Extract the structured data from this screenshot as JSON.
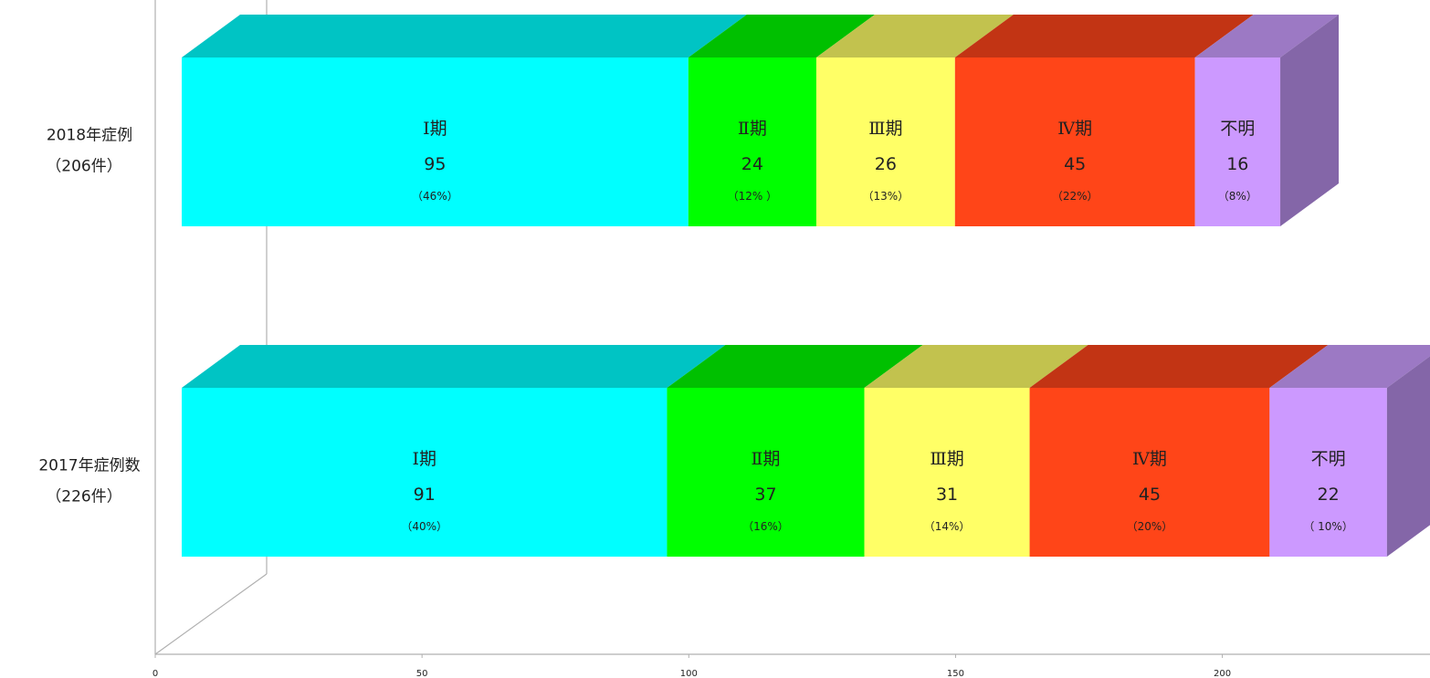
{
  "chart_data": {
    "type": "bar",
    "orientation": "horizontal",
    "stacked": true,
    "three_d": true,
    "title": "",
    "xlabel": "",
    "ylabel": "",
    "xlim": [
      0,
      236
    ],
    "xticks": [
      0,
      50,
      100,
      150,
      200
    ],
    "grid": false,
    "categories": [
      {
        "line1": "2018年症例",
        "line2": "（206件）"
      },
      {
        "line1": "2017年症例数",
        "line2": "（226件）"
      }
    ],
    "series": [
      {
        "name": "Ⅰ期",
        "color": "#00ffff",
        "top_color": "#00c4c4",
        "side_color": "#00a8a8",
        "values": [
          95,
          91
        ],
        "labels": [
          "（46%）",
          "（40%）"
        ]
      },
      {
        "name": "Ⅱ期",
        "color": "#00ff00",
        "top_color": "#00c000",
        "side_color": "#00a000",
        "values": [
          24,
          37
        ],
        "labels": [
          "（12% ）",
          "（16%）"
        ]
      },
      {
        "name": "Ⅲ期",
        "color": "#ffff66",
        "top_color": "#c2c24e",
        "side_color": "#a8a840",
        "values": [
          26,
          31
        ],
        "labels": [
          "（13%）",
          "（14%）"
        ]
      },
      {
        "name": "Ⅳ期",
        "color": "#ff4518",
        "top_color": "#c23414",
        "side_color": "#a82c10",
        "values": [
          45,
          45
        ],
        "labels": [
          "（22%）",
          "（20%）"
        ]
      },
      {
        "name": "不明",
        "color": "#cc99ff",
        "top_color": "#9c79c4",
        "side_color": "#8466a8",
        "values": [
          16,
          22
        ],
        "labels": [
          "（8%）",
          "（ 10%）"
        ]
      }
    ]
  }
}
